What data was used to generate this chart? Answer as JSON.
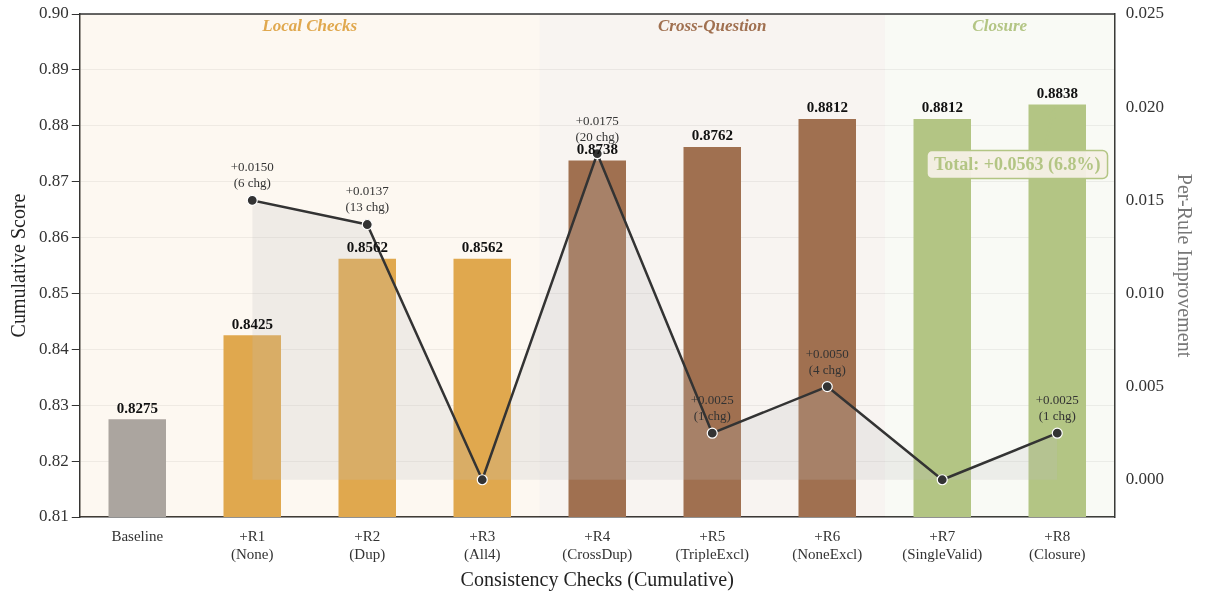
{
  "chart_data": {
    "type": "bar",
    "xlabel": "Consistency Checks (Cumulative)",
    "ylabel": "Cumulative Score",
    "y2label": "Per-Rule Improvement",
    "categories": [
      "Baseline",
      "+R1\n(None)",
      "+R2\n(Dup)",
      "+R3\n(All4)",
      "+R4\n(CrossDup)",
      "+R5\n(TripleExcl)",
      "+R6\n(NoneExcl)",
      "+R7\n(SingleValid)",
      "+R8\n(Closure)"
    ],
    "series": [
      {
        "type": "bar",
        "colors": [
          "#aba59f",
          "#e0a84e",
          "#e0a84e",
          "#e0a84e",
          "#a07050",
          "#a07050",
          "#a07050",
          "#b3c584",
          "#b3c584"
        ],
        "values": [
          0.8275,
          0.8425,
          0.8562,
          0.8562,
          0.8738,
          0.8762,
          0.8812,
          0.8812,
          0.8838
        ],
        "value_labels": [
          "0.8275",
          "0.8425",
          "0.8562",
          "0.8562",
          "0.8738",
          "0.8762",
          "0.8812",
          "0.8812",
          "0.8838"
        ]
      },
      {
        "type": "area",
        "axis": "y2",
        "color": "#333333",
        "values": [
          null,
          0.015,
          0.0137,
          0,
          0.0175,
          0.0025,
          0.005,
          0,
          0.0025
        ],
        "value_labels": [
          null,
          "+0.0150\n(6 chg)",
          "+0.0137\n(13 chg)",
          null,
          "+0.0175\n(20 chg)",
          "+0.0025\n(1 chg)",
          "+0.0050\n(4 chg)",
          null,
          "+0.0025\n(1 chg)"
        ]
      }
    ],
    "ylim": [
      0.81,
      0.9
    ],
    "yticks": [
      0.81,
      0.82,
      0.83,
      0.84,
      0.85,
      0.86,
      0.87,
      0.88,
      0.89,
      {
        "value": 0.9,
        "label": "0.90"
      }
    ],
    "y2lim": [
      -0.002,
      0.025
    ],
    "y2ticks": [
      {
        "value": 0,
        "label": "0.000"
      },
      0.005,
      {
        "value": 0.01,
        "label": "0.010"
      },
      0.015,
      {
        "value": 0.02,
        "label": "0.020"
      },
      0.025
    ],
    "bands": [
      {
        "axis": "x",
        "from": "Baseline",
        "to": "+R3\n(All4)",
        "label": "Local Checks",
        "color": "#e0a84e"
      },
      {
        "axis": "x",
        "from": "+R4\n(CrossDup)",
        "to": "+R6\n(NoneExcl)",
        "label": "Cross-Question",
        "color": "#a07050"
      },
      {
        "axis": "x",
        "from": "+R7\n(SingleValid)",
        "to": "+R8\n(Closure)",
        "label": "Closure",
        "color": "#b3c584"
      }
    ],
    "annotations": [
      {
        "text": "Total: +0.0563 (6.8%)",
        "x": "+R8\n(Closure)",
        "y": 0.8838
      }
    ],
    "grid": "y",
    "legend": false,
    "marker": "circle",
    "line_style": "solid"
  }
}
